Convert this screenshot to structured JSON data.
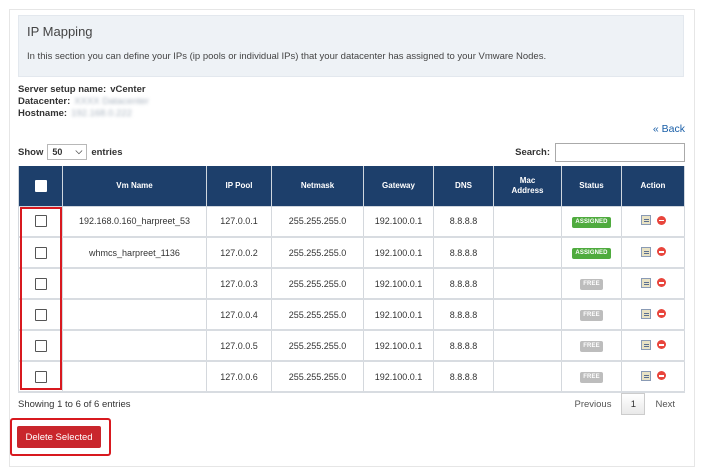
{
  "header": {
    "title": "IP Mapping",
    "description": "In this section you can define your IPs (ip pools or individual IPs) that your datacenter has assigned to your Vmware Nodes."
  },
  "server_info": {
    "setup_label": "Server setup name:",
    "setup_value": "vCenter",
    "datacenter_label": "Datacenter:",
    "datacenter_value": "XXXX Datacenter",
    "hostname_label": "Hostname:",
    "hostname_value": "192.168.0.222"
  },
  "back_link": "« Back",
  "show_entries": {
    "prefix": "Show",
    "value": "50",
    "suffix": "entries"
  },
  "search": {
    "label": "Search:",
    "value": ""
  },
  "table": {
    "columns": [
      "Vm Name",
      "IP Pool",
      "Netmask",
      "Gateway",
      "DNS",
      "Mac Address",
      "Status",
      "Action"
    ],
    "rows": [
      {
        "vm_name": "192.168.0.160_harpreet_53",
        "ip_pool": "127.0.0.1",
        "netmask": "255.255.255.0",
        "gateway": "192.100.0.1",
        "dns": "8.8.8.8",
        "mac": "",
        "status": "ASSIGNED"
      },
      {
        "vm_name": "whmcs_harpreet_1136",
        "ip_pool": "127.0.0.2",
        "netmask": "255.255.255.0",
        "gateway": "192.100.0.1",
        "dns": "8.8.8.8",
        "mac": "",
        "status": "ASSIGNED"
      },
      {
        "vm_name": "",
        "ip_pool": "127.0.0.3",
        "netmask": "255.255.255.0",
        "gateway": "192.100.0.1",
        "dns": "8.8.8.8",
        "mac": "",
        "status": "FREE"
      },
      {
        "vm_name": "",
        "ip_pool": "127.0.0.4",
        "netmask": "255.255.255.0",
        "gateway": "192.100.0.1",
        "dns": "8.8.8.8",
        "mac": "",
        "status": "FREE"
      },
      {
        "vm_name": "",
        "ip_pool": "127.0.0.5",
        "netmask": "255.255.255.0",
        "gateway": "192.100.0.1",
        "dns": "8.8.8.8",
        "mac": "",
        "status": "FREE"
      },
      {
        "vm_name": "",
        "ip_pool": "127.0.0.6",
        "netmask": "255.255.255.0",
        "gateway": "192.100.0.1",
        "dns": "8.8.8.8",
        "mac": "",
        "status": "FREE"
      }
    ]
  },
  "footer": {
    "info": "Showing 1 to 6 of 6 entries",
    "previous": "Previous",
    "current_page": "1",
    "next": "Next"
  },
  "delete_button": "Delete Selected",
  "colors": {
    "header_bg": "#1d3f6b",
    "assigned": "#4fab3e",
    "free": "#bdbdbd",
    "delete_button": "#c9262c",
    "highlight": "#d8191f",
    "link": "#1a5fa8"
  },
  "icons": {
    "edit": "edit-icon",
    "delete": "delete-icon",
    "dropdown": "chevron-down-icon"
  }
}
